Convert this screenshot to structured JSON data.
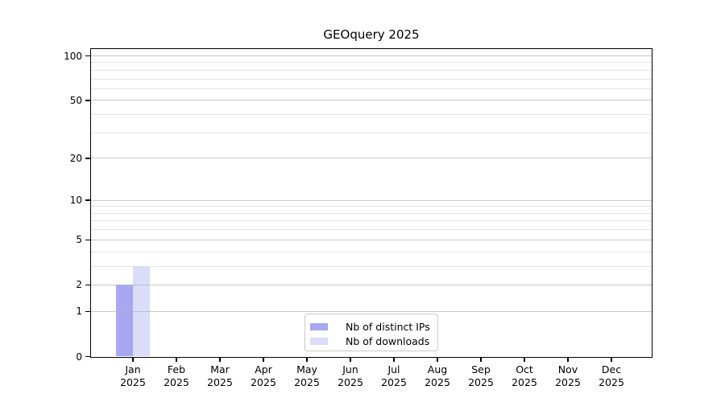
{
  "chart_data": {
    "type": "bar",
    "title": "GEOquery 2025",
    "categories": [
      "Jan 2025",
      "Feb 2025",
      "Mar 2025",
      "Apr 2025",
      "May 2025",
      "Jun 2025",
      "Jul 2025",
      "Aug 2025",
      "Sep 2025",
      "Oct 2025",
      "Nov 2025",
      "Dec 2025"
    ],
    "series": [
      {
        "name": "Nb of distinct IPs",
        "color": "#a8a8f2",
        "values": [
          2,
          0,
          0,
          0,
          0,
          0,
          0,
          0,
          0,
          0,
          0,
          0
        ]
      },
      {
        "name": "Nb of downloads",
        "color": "#dbdbfa",
        "values": [
          3,
          0,
          0,
          0,
          0,
          0,
          0,
          0,
          0,
          0,
          0,
          0
        ]
      }
    ],
    "yscale": "log10(1+v)",
    "ylim": [
      0,
      100
    ],
    "y_tick_values": [
      0,
      1,
      2,
      5,
      10,
      20,
      50,
      100
    ],
    "y_tick_labels": [
      "0",
      "1",
      "2",
      "5",
      "10",
      "20",
      "50",
      "100"
    ],
    "y_minor_gridline_values": [
      3,
      4,
      6,
      7,
      8,
      9,
      30,
      40,
      60,
      70,
      80,
      90
    ],
    "grid": "horizontal",
    "legend_position": "bottom-center-inside",
    "gridline_major_color": "#c6c6c6",
    "gridline_minor_color": "#ececec"
  }
}
